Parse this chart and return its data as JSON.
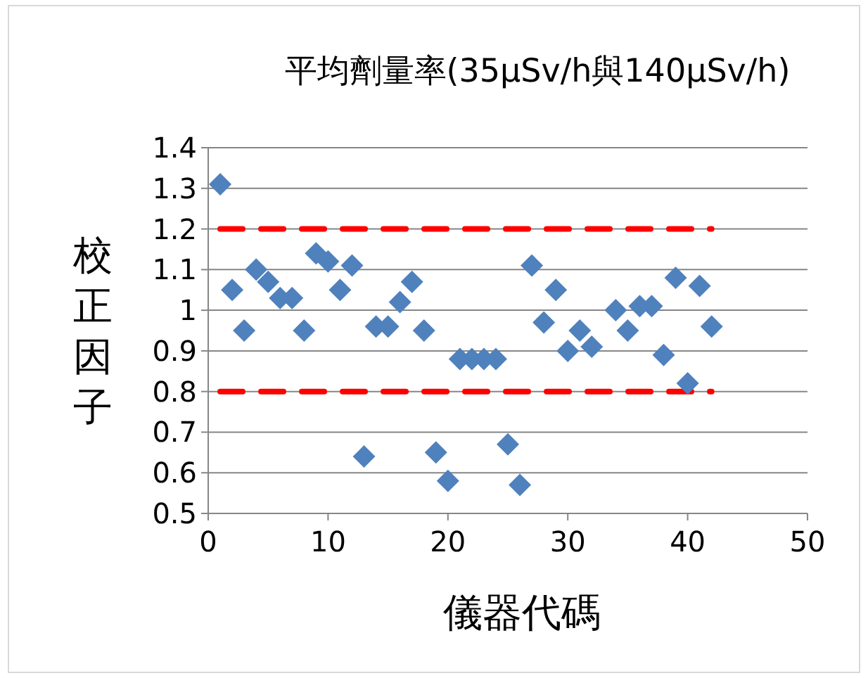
{
  "chart_data": {
    "type": "scatter",
    "title": "平均劑量率(35μSv/h與140μSv/h)",
    "xlabel": "儀器代碼",
    "ylabel": "校正因子",
    "xlim": [
      0,
      50
    ],
    "xticks": [
      0,
      10,
      20,
      30,
      40,
      50
    ],
    "ylim": [
      0.5,
      1.4
    ],
    "yticks": [
      0.5,
      0.6,
      0.7,
      0.8,
      0.9,
      1,
      1.1,
      1.2,
      1.3,
      1.4
    ],
    "grid": "y",
    "marker": "diamond",
    "series": [
      {
        "color": "#4f81bd",
        "x": [
          1,
          2,
          3,
          4,
          5,
          6,
          7,
          8,
          9,
          10,
          11,
          12,
          13,
          14,
          15,
          16,
          17,
          18,
          19,
          20,
          21,
          22,
          23,
          24,
          25,
          26,
          27,
          28,
          29,
          30,
          31,
          32,
          34,
          35,
          36,
          37,
          38,
          39,
          40,
          41,
          42
        ],
        "values": [
          1.31,
          1.05,
          0.95,
          1.1,
          1.07,
          1.03,
          1.03,
          0.95,
          1.14,
          1.12,
          1.05,
          1.11,
          0.64,
          0.96,
          0.96,
          1.02,
          1.07,
          0.95,
          0.65,
          0.58,
          0.88,
          0.88,
          0.88,
          0.88,
          0.67,
          0.57,
          1.11,
          0.97,
          1.05,
          0.9,
          0.95,
          0.91,
          1.0,
          0.95,
          1.01,
          1.01,
          0.89,
          1.08,
          0.82,
          1.06,
          0.96
        ]
      },
      {
        "type": "line",
        "color": "#ff0000",
        "line_style": "dashed",
        "marker": "none",
        "x": [
          1,
          42
        ],
        "values": [
          1.2,
          1.2
        ]
      },
      {
        "type": "line",
        "color": "#ff0000",
        "line_style": "dashed",
        "marker": "none",
        "x": [
          1,
          42
        ],
        "values": [
          0.8,
          0.8
        ]
      }
    ]
  }
}
